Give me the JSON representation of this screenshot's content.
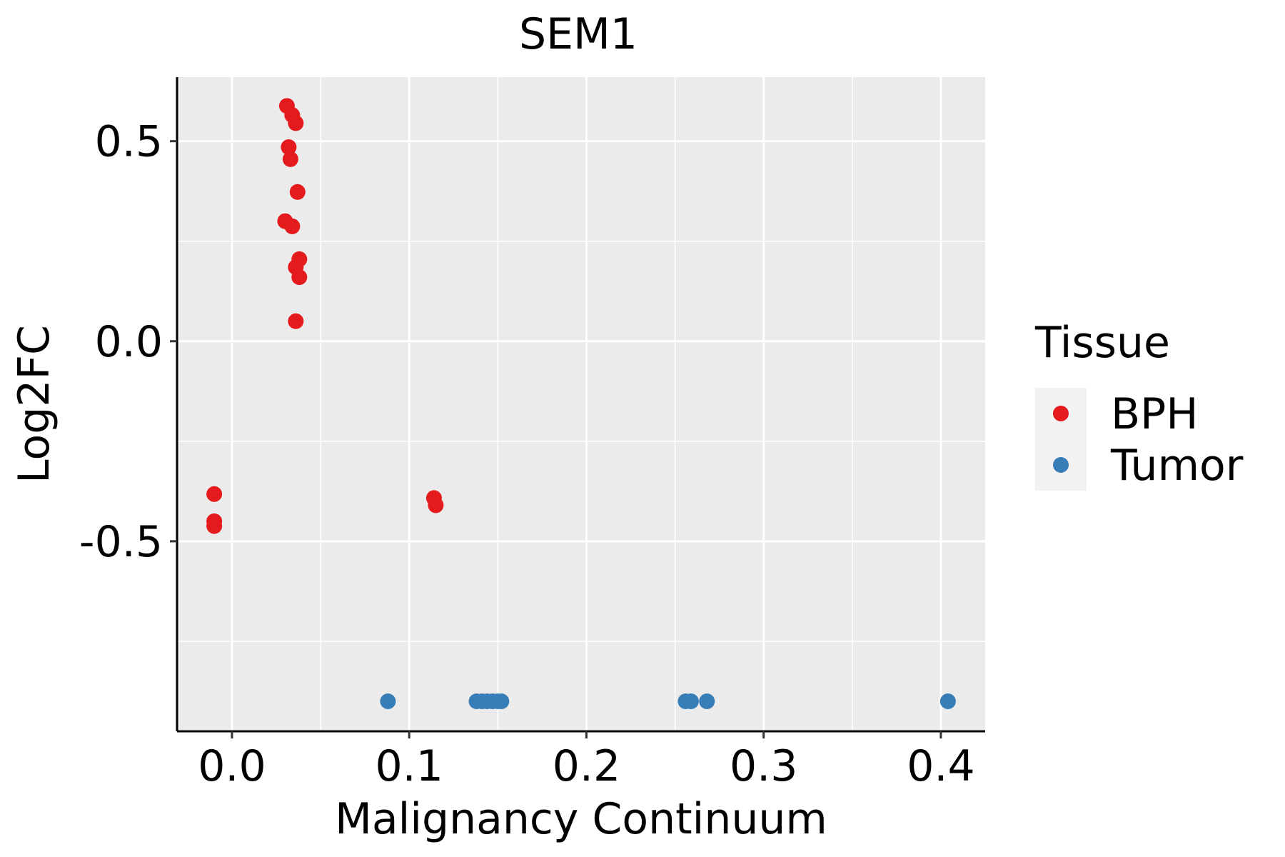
{
  "chart_data": {
    "type": "scatter",
    "title": "SEM1",
    "xlabel": "Malignancy Continuum",
    "ylabel": "Log2FC",
    "xlim": [
      -0.031,
      0.425
    ],
    "ylim": [
      -0.975,
      0.66
    ],
    "xticks": [
      0.0,
      0.1,
      0.2,
      0.3,
      0.4
    ],
    "xtick_labels": [
      "0.0",
      "0.1",
      "0.2",
      "0.3",
      "0.4"
    ],
    "yticks": [
      -0.5,
      0.0,
      0.5
    ],
    "ytick_labels": [
      "-0.5",
      "0.0",
      "0.5"
    ],
    "grid": true,
    "legend": {
      "title": "Tissue",
      "placement": "right"
    },
    "series": [
      {
        "name": "BPH",
        "color": "#E41A1C",
        "points": [
          [
            0.031,
            0.588
          ],
          [
            0.034,
            0.565
          ],
          [
            0.036,
            0.545
          ],
          [
            0.032,
            0.485
          ],
          [
            0.033,
            0.455
          ],
          [
            0.037,
            0.373
          ],
          [
            0.03,
            0.3
          ],
          [
            0.034,
            0.287
          ],
          [
            0.038,
            0.205
          ],
          [
            0.036,
            0.185
          ],
          [
            0.038,
            0.16
          ],
          [
            0.036,
            0.05
          ],
          [
            -0.01,
            -0.382
          ],
          [
            -0.01,
            -0.45
          ],
          [
            -0.01,
            -0.462
          ],
          [
            0.114,
            -0.392
          ],
          [
            0.115,
            -0.41
          ]
        ]
      },
      {
        "name": "Tumor",
        "color": "#377EB8",
        "points": [
          [
            0.088,
            -0.9
          ],
          [
            0.138,
            -0.9
          ],
          [
            0.141,
            -0.9
          ],
          [
            0.144,
            -0.9
          ],
          [
            0.147,
            -0.9
          ],
          [
            0.15,
            -0.9
          ],
          [
            0.152,
            -0.9
          ],
          [
            0.256,
            -0.9
          ],
          [
            0.259,
            -0.9
          ],
          [
            0.268,
            -0.9
          ],
          [
            0.404,
            -0.9
          ]
        ]
      }
    ]
  }
}
